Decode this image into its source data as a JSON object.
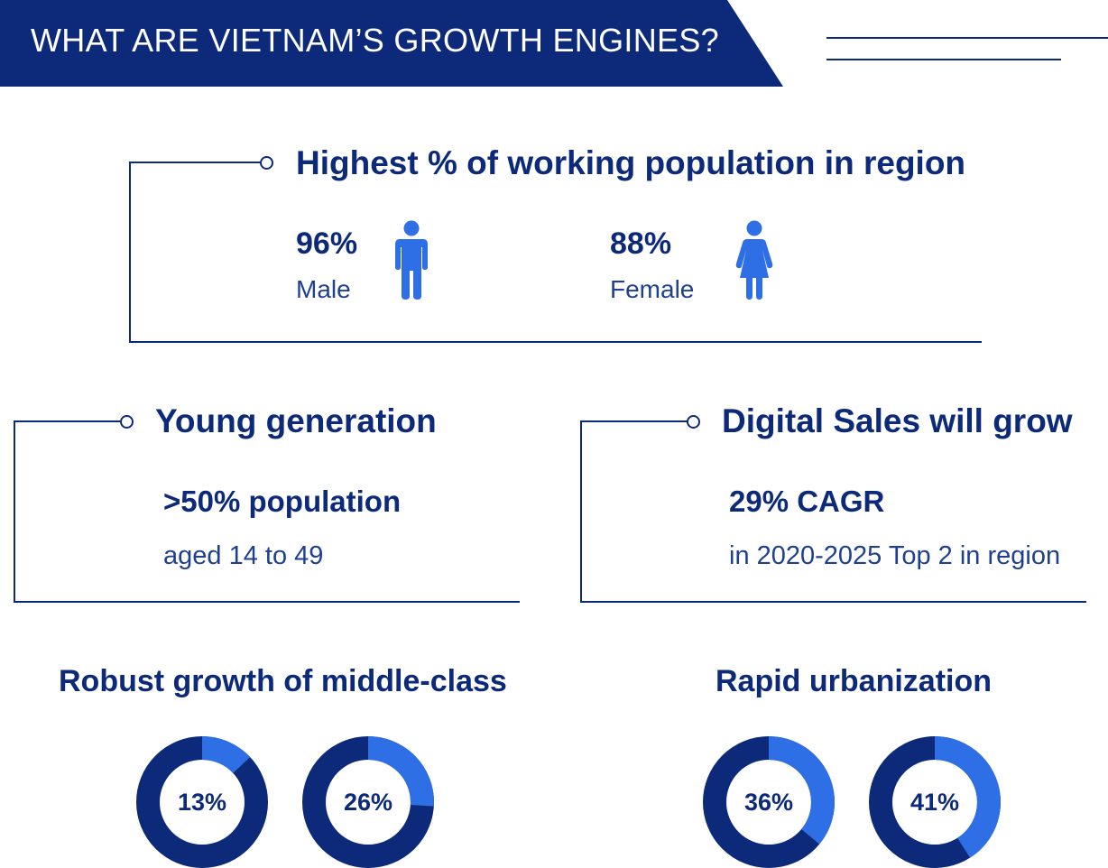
{
  "colors": {
    "navy": "#0d2a7a",
    "blue": "#2f6fe6",
    "white": "#ffffff"
  },
  "header": {
    "title": "WHAT ARE VIETNAM’S GROWTH ENGINES?"
  },
  "working_population": {
    "title": "Highest % of working population in region",
    "male": {
      "value": "96%",
      "label": "Male",
      "icon": "male-person-icon"
    },
    "female": {
      "value": "88%",
      "label": "Female",
      "icon": "female-person-icon"
    }
  },
  "young_generation": {
    "title": "Young generation",
    "stat": ">50% population",
    "detail": "aged 14 to 49"
  },
  "digital_sales": {
    "title": "Digital Sales will grow",
    "stat": "29% CAGR",
    "detail": "in 2020-2025 Top 2 in region"
  },
  "middle_class": {
    "title": "Robust growth of middle-class",
    "donuts": [
      {
        "label": "13%",
        "value": 13
      },
      {
        "label": "26%",
        "value": 26
      }
    ]
  },
  "urbanization": {
    "title": "Rapid urbanization",
    "donuts": [
      {
        "label": "36%",
        "value": 36
      },
      {
        "label": "41%",
        "value": 41
      }
    ]
  }
}
